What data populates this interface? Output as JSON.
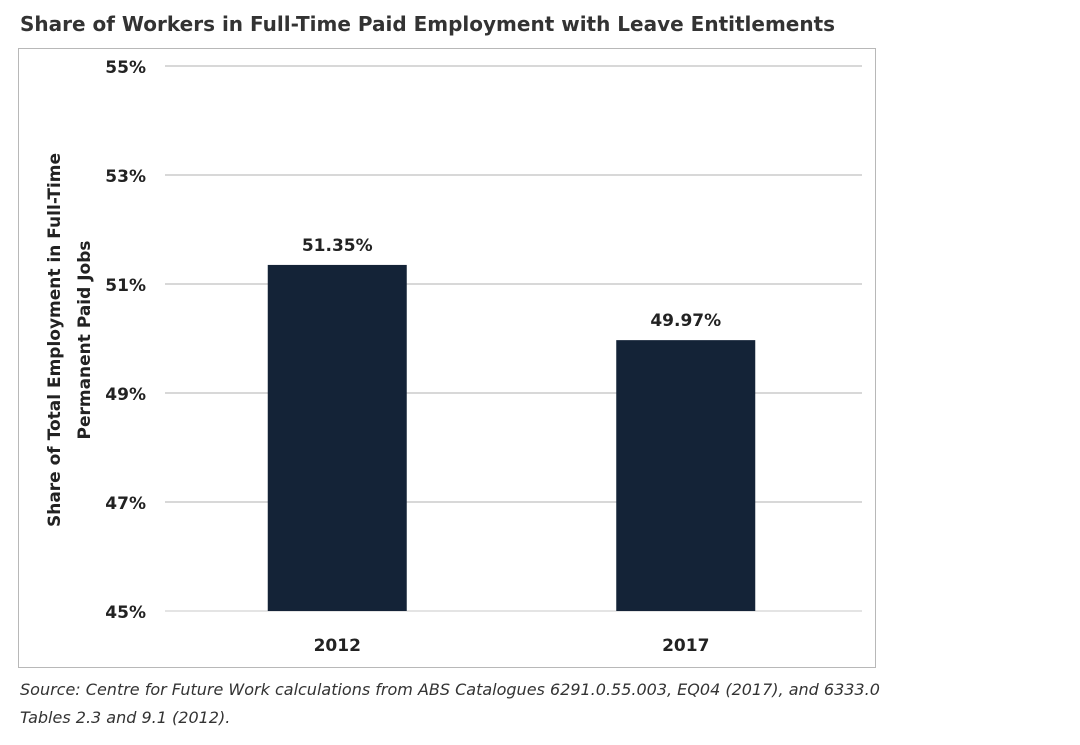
{
  "chart_data": {
    "type": "bar",
    "title": "Share of Workers in Full-Time Paid Employment with Leave Entitlements",
    "ylabel_line1": "Share of Total Employment in Full-Time",
    "ylabel_line2": "Permanent Paid Jobs",
    "xlabel": "",
    "categories": [
      "2012",
      "2017"
    ],
    "values": [
      51.35,
      49.97
    ],
    "value_labels": [
      "51.35%",
      "49.97%"
    ],
    "ylim": [
      45,
      55
    ],
    "yticks": [
      45,
      47,
      49,
      51,
      53,
      55
    ],
    "ytick_labels": [
      "45%",
      "47%",
      "49%",
      "51%",
      "53%",
      "55%"
    ],
    "grid": true,
    "bar_color": "#142337"
  },
  "source_line1": "Source: Centre for Future Work calculations from ABS Catalogues 6291.0.55.003, EQ04 (2017), and 6333.0",
  "source_line2": "Tables 2.3 and 9.1 (2012)."
}
